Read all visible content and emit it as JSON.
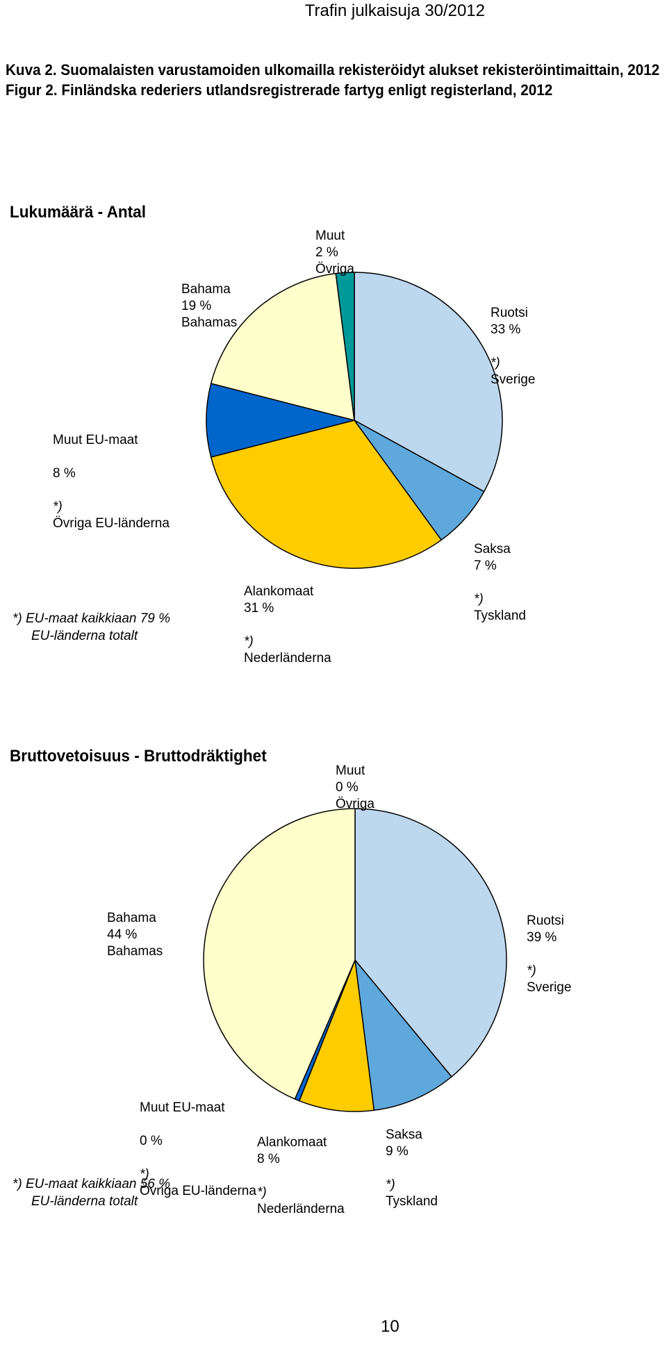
{
  "header": "Trafin julkaisuja 30/2012",
  "figure_titles": [
    "Kuva 2. Suomalaisten varustamoiden ulkomailla rekisteröidyt alukset rekisteröintimaittain, 2012",
    "Figur 2. Finländska rederiers utlandsregistrerade fartyg enligt registerland, 2012"
  ],
  "page_number": "10",
  "chart_data": [
    {
      "type": "pie",
      "title": "Lukumäärä - Antal",
      "start_angle_deg": 0,
      "direction": "clockwise",
      "slices": [
        {
          "fi": "Ruotsi",
          "sv": "Sverige",
          "value": 33,
          "pct": "33 %",
          "eu": "*)",
          "color": "#bdd7ee"
        },
        {
          "fi": "Saksa",
          "sv": "Tyskland",
          "value": 7,
          "pct": "7 %",
          "eu": "*)",
          "color": "#5fa8dc"
        },
        {
          "fi": "Alankomaat",
          "sv": "Nederländerna",
          "value": 31,
          "pct": "31 %",
          "eu": "*)",
          "color": "#ffcc00"
        },
        {
          "fi": "Muut EU-maat",
          "sv": "Övriga EU-länderna",
          "value": 8,
          "pct": "8 %",
          "eu": "*)",
          "color": "#0066cc"
        },
        {
          "fi": "Bahama",
          "sv": "Bahamas",
          "value": 19,
          "pct": "19 %",
          "eu": "",
          "color": "#ffffcc"
        },
        {
          "fi": "Muut",
          "sv": "Övriga",
          "value": 2,
          "pct": "2 %",
          "eu": "",
          "color": "#009999"
        }
      ],
      "note": {
        "line1": "*) EU-maat kaikkiaan 79 %",
        "line2": "EU-länderna totalt"
      }
    },
    {
      "type": "pie",
      "title": "Bruttovetoisuus - Bruttodräktighet",
      "start_angle_deg": 0,
      "direction": "clockwise",
      "slices": [
        {
          "fi": "Ruotsi",
          "sv": "Sverige",
          "value": 39,
          "pct": "39 %",
          "eu": "*)",
          "color": "#bdd7ee"
        },
        {
          "fi": "Saksa",
          "sv": "Tyskland",
          "value": 9,
          "pct": "9 %",
          "eu": "*)",
          "color": "#5fa8dc"
        },
        {
          "fi": "Alankomaat",
          "sv": "Nederländerna",
          "value": 8,
          "pct": "8 %",
          "eu": "*)",
          "color": "#ffcc00"
        },
        {
          "fi": "Muut EU-maat",
          "sv": "Övriga EU-länderna",
          "value": 0.5,
          "pct": "0 %",
          "eu": "*)",
          "color": "#0066cc"
        },
        {
          "fi": "Bahama",
          "sv": "Bahamas",
          "value": 43.5,
          "pct": "44 %",
          "eu": "",
          "color": "#ffffcc"
        },
        {
          "fi": "Muut",
          "sv": "Övriga",
          "value": 0,
          "pct": "0 %",
          "eu": "",
          "color": "#009999"
        }
      ],
      "note": {
        "line1": "*) EU-maat kaikkiaan 56 %",
        "line2": "EU-länderna totalt"
      }
    }
  ]
}
